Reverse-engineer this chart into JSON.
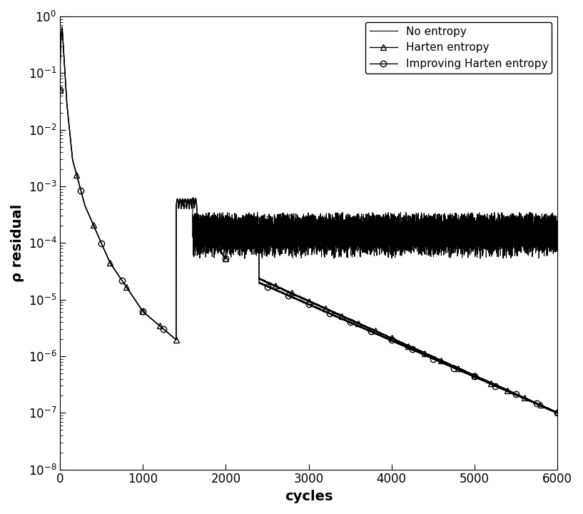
{
  "xlabel": "cycles",
  "ylabel": "ρ residual",
  "xlim": [
    0,
    6000
  ],
  "ylim_log": [
    -8,
    0
  ],
  "legend_labels": [
    "No entropy",
    "Harten entropy",
    "Improving Harten entropy"
  ],
  "line_color": "#000000",
  "line_width": 1.2,
  "marker_size": 6,
  "background_color": "#ffffff",
  "font_size_labels": 14,
  "font_size_ticks": 12
}
